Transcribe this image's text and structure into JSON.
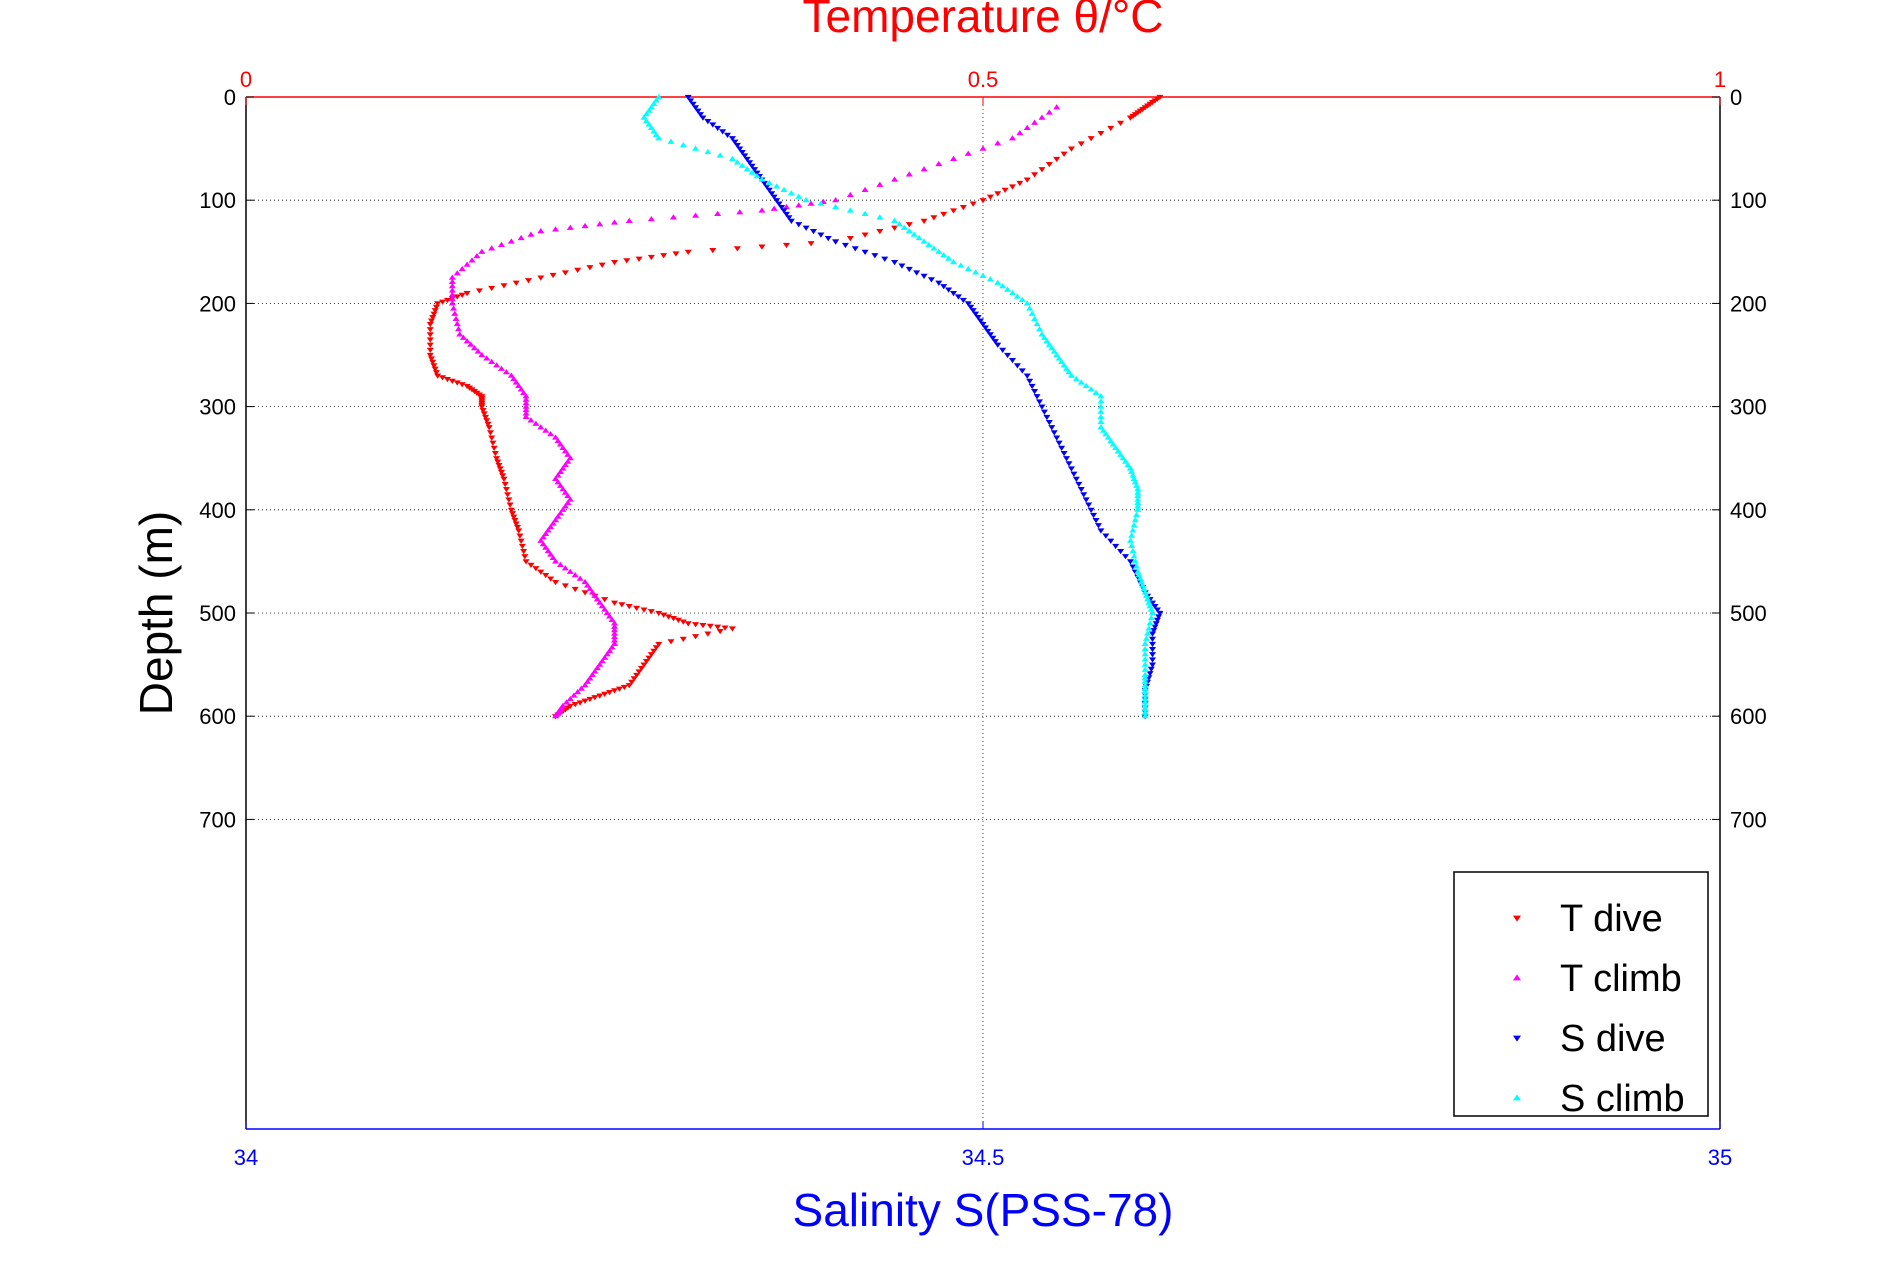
{
  "chart_data": {
    "type": "scatter",
    "title": "Temperature θ/°C",
    "ylabel": "Depth (m)",
    "xlabel": "Salinity S(PSS-78)",
    "y_axis": {
      "range": [
        0,
        1000
      ],
      "reversed": true,
      "ticks": [
        0,
        100,
        200,
        300,
        400,
        500,
        600,
        700
      ]
    },
    "x_top_axis": {
      "label": "Temperature θ/°C",
      "range": [
        0,
        1
      ],
      "ticks": [
        "0",
        "0.5",
        "1"
      ],
      "color": "#ff0000"
    },
    "x_bottom_axis": {
      "label": "Salinity S(PSS-78)",
      "range": [
        34,
        35
      ],
      "ticks": [
        "34",
        "34.5",
        "35"
      ],
      "color": "#0000ff"
    },
    "grid": true,
    "legend_position": "bottom-right",
    "series": [
      {
        "name": "T dive",
        "axis": "temperature",
        "color": "#ff0000",
        "marker": "triangle-down",
        "points": [
          [
            0.62,
            0
          ],
          [
            0.61,
            10
          ],
          [
            0.6,
            20
          ],
          [
            0.56,
            50
          ],
          [
            0.53,
            80
          ],
          [
            0.5,
            100
          ],
          [
            0.46,
            120
          ],
          [
            0.4,
            140
          ],
          [
            0.3,
            150
          ],
          [
            0.25,
            160
          ],
          [
            0.2,
            175
          ],
          [
            0.15,
            190
          ],
          [
            0.13,
            200
          ],
          [
            0.125,
            220
          ],
          [
            0.125,
            250
          ],
          [
            0.13,
            270
          ],
          [
            0.15,
            280
          ],
          [
            0.16,
            290
          ],
          [
            0.16,
            300
          ],
          [
            0.165,
            320
          ],
          [
            0.17,
            350
          ],
          [
            0.175,
            370
          ],
          [
            0.18,
            400
          ],
          [
            0.185,
            420
          ],
          [
            0.19,
            450
          ],
          [
            0.21,
            470
          ],
          [
            0.25,
            490
          ],
          [
            0.28,
            500
          ],
          [
            0.3,
            510
          ],
          [
            0.33,
            515
          ],
          [
            0.28,
            530
          ],
          [
            0.27,
            550
          ],
          [
            0.26,
            570
          ],
          [
            0.24,
            580
          ],
          [
            0.22,
            590
          ],
          [
            0.21,
            600
          ]
        ]
      },
      {
        "name": "T climb",
        "axis": "temperature",
        "color": "#ff00ff",
        "marker": "triangle-up",
        "points": [
          [
            0.55,
            10
          ],
          [
            0.52,
            40
          ],
          [
            0.46,
            70
          ],
          [
            0.4,
            100
          ],
          [
            0.35,
            110
          ],
          [
            0.26,
            120
          ],
          [
            0.2,
            130
          ],
          [
            0.16,
            150
          ],
          [
            0.14,
            175
          ],
          [
            0.14,
            200
          ],
          [
            0.145,
            230
          ],
          [
            0.16,
            250
          ],
          [
            0.18,
            270
          ],
          [
            0.19,
            290
          ],
          [
            0.19,
            310
          ],
          [
            0.21,
            330
          ],
          [
            0.22,
            350
          ],
          [
            0.21,
            370
          ],
          [
            0.22,
            390
          ],
          [
            0.21,
            410
          ],
          [
            0.2,
            430
          ],
          [
            0.21,
            450
          ],
          [
            0.23,
            470
          ],
          [
            0.24,
            490
          ],
          [
            0.25,
            510
          ],
          [
            0.25,
            530
          ],
          [
            0.24,
            550
          ],
          [
            0.23,
            570
          ],
          [
            0.215,
            590
          ],
          [
            0.21,
            600
          ]
        ]
      },
      {
        "name": "S dive",
        "axis": "salinity",
        "color": "#0000ff",
        "marker": "triangle-down",
        "points": [
          [
            34.3,
            0
          ],
          [
            34.31,
            20
          ],
          [
            34.33,
            40
          ],
          [
            34.34,
            60
          ],
          [
            34.35,
            80
          ],
          [
            34.36,
            100
          ],
          [
            34.37,
            120
          ],
          [
            34.4,
            140
          ],
          [
            34.44,
            160
          ],
          [
            34.47,
            180
          ],
          [
            34.49,
            200
          ],
          [
            34.5,
            220
          ],
          [
            34.51,
            240
          ],
          [
            34.53,
            270
          ],
          [
            34.54,
            300
          ],
          [
            34.55,
            330
          ],
          [
            34.56,
            360
          ],
          [
            34.57,
            390
          ],
          [
            34.58,
            420
          ],
          [
            34.6,
            450
          ],
          [
            34.61,
            480
          ],
          [
            34.62,
            500
          ],
          [
            34.615,
            520
          ],
          [
            34.615,
            550
          ],
          [
            34.61,
            575
          ],
          [
            34.61,
            600
          ]
        ]
      },
      {
        "name": "S climb",
        "axis": "salinity",
        "color": "#00ffff",
        "marker": "triangle-up",
        "points": [
          [
            34.28,
            0
          ],
          [
            34.27,
            20
          ],
          [
            34.28,
            40
          ],
          [
            34.33,
            60
          ],
          [
            34.35,
            80
          ],
          [
            34.38,
            100
          ],
          [
            34.44,
            120
          ],
          [
            34.46,
            140
          ],
          [
            34.48,
            160
          ],
          [
            34.51,
            180
          ],
          [
            34.53,
            200
          ],
          [
            34.54,
            230
          ],
          [
            34.55,
            250
          ],
          [
            34.56,
            270
          ],
          [
            34.58,
            290
          ],
          [
            34.58,
            320
          ],
          [
            34.59,
            340
          ],
          [
            34.6,
            360
          ],
          [
            34.605,
            380
          ],
          [
            34.605,
            400
          ],
          [
            34.6,
            430
          ],
          [
            34.605,
            460
          ],
          [
            34.61,
            480
          ],
          [
            34.615,
            500
          ],
          [
            34.61,
            530
          ],
          [
            34.61,
            560
          ],
          [
            34.61,
            580
          ],
          [
            34.61,
            600
          ]
        ]
      }
    ]
  }
}
